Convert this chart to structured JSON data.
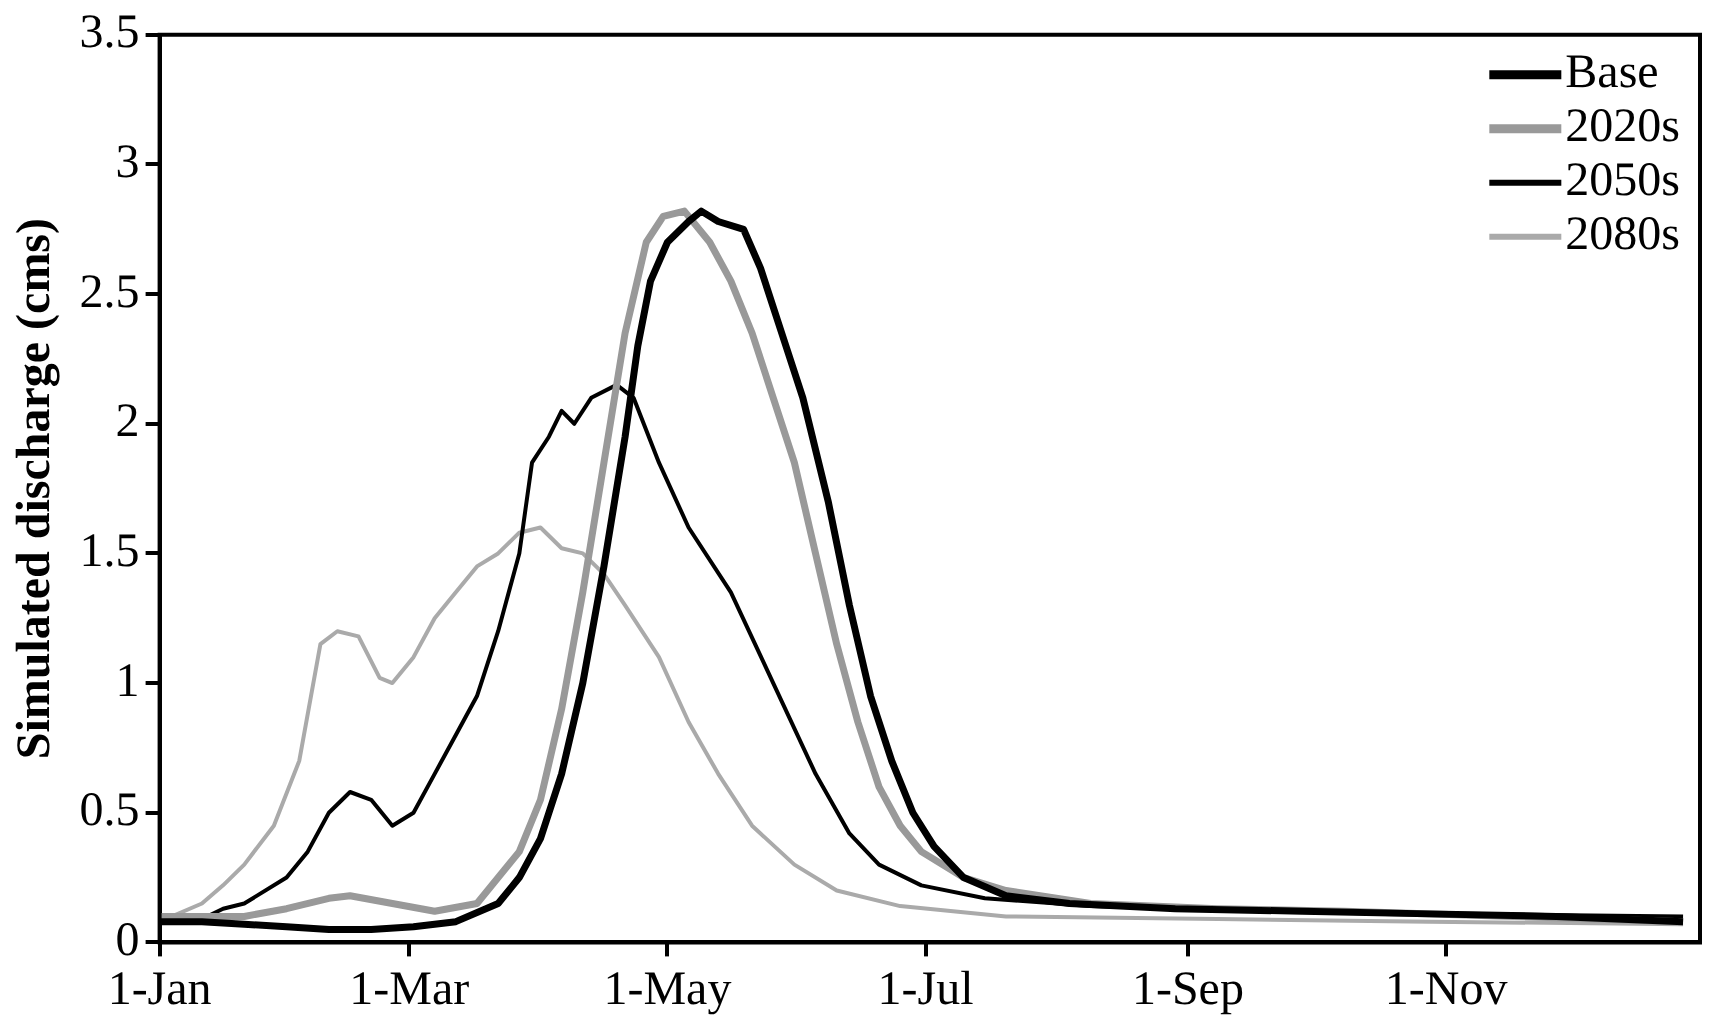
{
  "chart_data": {
    "type": "line",
    "ylabel": "Simulated discharge (cms)",
    "xlim": [
      "--01-01",
      "--12-31"
    ],
    "xticks": [
      {
        "value": "--01-01",
        "label": "1-Jan"
      },
      {
        "value": "--03-01",
        "label": "1-Mar"
      },
      {
        "value": "--05-01",
        "label": "1-May"
      },
      {
        "value": "--07-01",
        "label": "1-Jul"
      },
      {
        "value": "--09-01",
        "label": "1-Sep"
      },
      {
        "value": "--11-01",
        "label": "1-Nov"
      }
    ],
    "ylim": [
      0,
      3.5
    ],
    "yticks": [
      0,
      0.5,
      1,
      1.5,
      2,
      2.5,
      3,
      3.5
    ],
    "grid": false,
    "legend": "top right",
    "marker": "none",
    "line_style": "solid",
    "series": [
      {
        "name": "Base",
        "color": "#000000",
        "x": [
          "--01-01",
          "--01-11",
          "--01-21",
          "--01-31",
          "--02-10",
          "--02-20",
          "--03-02",
          "--03-12",
          "--03-22",
          "--03-27",
          "--04-01",
          "--04-06",
          "--04-11",
          "--04-16",
          "--04-21",
          "--04-24",
          "--04-27",
          "--05-01",
          "--05-06",
          "--05-09",
          "--05-13",
          "--05-19",
          "--05-23",
          "--05-28",
          "--06-02",
          "--06-08",
          "--06-13",
          "--06-18",
          "--06-23",
          "--06-28",
          "--07-03",
          "--07-10",
          "--07-20",
          "--08-04",
          "--08-29",
          "--09-28",
          "--10-28",
          "--11-27",
          "--12-27"
        ],
        "values": [
          0.08,
          0.08,
          0.07,
          0.06,
          0.05,
          0.05,
          0.06,
          0.08,
          0.15,
          0.25,
          0.4,
          0.65,
          1.0,
          1.45,
          1.95,
          2.3,
          2.55,
          2.7,
          2.78,
          2.82,
          2.78,
          2.75,
          2.6,
          2.35,
          2.1,
          1.7,
          1.3,
          0.95,
          0.7,
          0.5,
          0.37,
          0.25,
          0.18,
          0.15,
          0.13,
          0.12,
          0.11,
          0.1,
          0.08
        ]
      },
      {
        "name": "2020s",
        "color": "#999999",
        "x": [
          "--01-01",
          "--01-21",
          "--01-31",
          "--02-10",
          "--02-15",
          "--02-25",
          "--03-07",
          "--03-17",
          "--03-27",
          "--04-01",
          "--04-06",
          "--04-11",
          "--04-16",
          "--04-21",
          "--04-26",
          "--04-30",
          "--05-05",
          "--05-11",
          "--05-16",
          "--05-21",
          "--05-26",
          "--05-31",
          "--06-05",
          "--06-10",
          "--06-15",
          "--06-20",
          "--06-25",
          "--06-30",
          "--07-10",
          "--07-20",
          "--08-09",
          "--09-08",
          "--10-08",
          "--11-17",
          "--12-27"
        ],
        "values": [
          0.1,
          0.1,
          0.13,
          0.17,
          0.18,
          0.15,
          0.12,
          0.15,
          0.35,
          0.55,
          0.9,
          1.35,
          1.85,
          2.35,
          2.7,
          2.8,
          2.82,
          2.7,
          2.55,
          2.35,
          2.1,
          1.85,
          1.5,
          1.15,
          0.85,
          0.6,
          0.45,
          0.35,
          0.25,
          0.2,
          0.15,
          0.13,
          0.12,
          0.1,
          0.08
        ]
      },
      {
        "name": "2050s",
        "color": "#000000",
        "x": [
          "--01-01",
          "--01-11",
          "--01-16",
          "--01-21",
          "--01-31",
          "--02-05",
          "--02-10",
          "--02-15",
          "--02-20",
          "--02-25",
          "--03-02",
          "--03-07",
          "--03-12",
          "--03-17",
          "--03-22",
          "--03-27",
          "--03-30",
          "--04-03",
          "--04-06",
          "--04-09",
          "--04-13",
          "--04-19",
          "--04-23",
          "--04-29",
          "--05-06",
          "--05-16",
          "--05-26",
          "--06-05",
          "--06-13",
          "--06-20",
          "--06-30",
          "--07-15",
          "--08-09",
          "--09-18",
          "--10-28",
          "--12-27"
        ],
        "values": [
          0.08,
          0.09,
          0.13,
          0.15,
          0.25,
          0.35,
          0.5,
          0.58,
          0.55,
          0.45,
          0.5,
          0.65,
          0.8,
          0.95,
          1.2,
          1.5,
          1.85,
          1.95,
          2.05,
          2.0,
          2.1,
          2.15,
          2.1,
          1.85,
          1.6,
          1.35,
          1.0,
          0.65,
          0.42,
          0.3,
          0.22,
          0.17,
          0.14,
          0.12,
          0.11,
          0.1
        ]
      },
      {
        "name": "2080s",
        "color": "#aaaaaa",
        "x": [
          "--01-01",
          "--01-11",
          "--01-16",
          "--01-21",
          "--01-28",
          "--02-03",
          "--02-08",
          "--02-12",
          "--02-17",
          "--02-22",
          "--02-25",
          "--03-02",
          "--03-07",
          "--03-12",
          "--03-17",
          "--03-22",
          "--03-27",
          "--04-01",
          "--04-06",
          "--04-11",
          "--04-16",
          "--04-21",
          "--04-29",
          "--05-06",
          "--05-13",
          "--05-21",
          "--05-31",
          "--06-10",
          "--06-25",
          "--07-20",
          "--09-08",
          "--10-28",
          "--12-27"
        ],
        "values": [
          0.08,
          0.15,
          0.22,
          0.3,
          0.45,
          0.7,
          1.15,
          1.2,
          1.18,
          1.02,
          1.0,
          1.1,
          1.25,
          1.35,
          1.45,
          1.5,
          1.58,
          1.6,
          1.52,
          1.5,
          1.42,
          1.3,
          1.1,
          0.85,
          0.65,
          0.45,
          0.3,
          0.2,
          0.14,
          0.1,
          0.09,
          0.08,
          0.07
        ]
      }
    ]
  }
}
